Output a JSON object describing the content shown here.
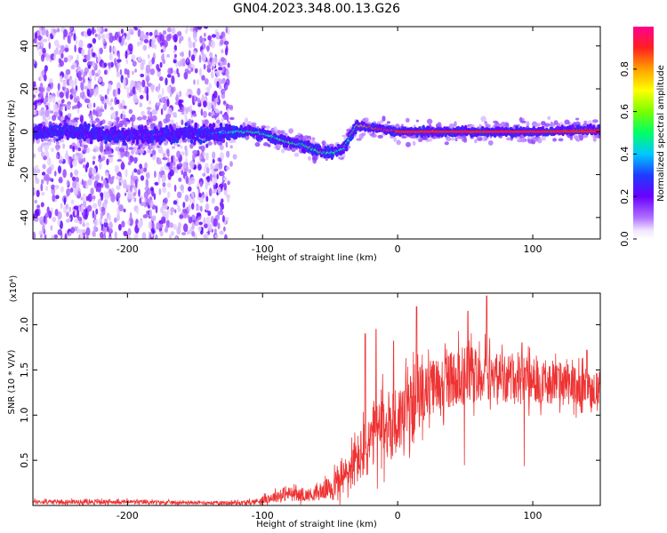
{
  "title": "GN04.2023.348.00.13.G26",
  "chart_data": [
    {
      "type": "heatmap",
      "xlabel": "Height of straight line (km)",
      "ylabel": "Frequency (Hz)",
      "xlim": [
        -270,
        150
      ],
      "ylim": [
        -50,
        49
      ],
      "xticks": [
        -200,
        -100,
        0,
        100
      ],
      "yticks": [
        -40,
        -20,
        0,
        20,
        40
      ],
      "colorbar": {
        "label": "Normalized spectral amplitude",
        "range": [
          0,
          1
        ],
        "ticks": [
          0.0,
          0.2,
          0.4,
          0.6,
          0.8
        ],
        "tick_labels": [
          "0.0",
          "0.2",
          "0.4",
          "0.6",
          "0.8"
        ],
        "colormap": "rainbow"
      },
      "ridge": {
        "x": [
          -270,
          -240,
          -200,
          -170,
          -140,
          -120,
          -110,
          -100,
          -90,
          -80,
          -70,
          -60,
          -50,
          -40,
          -35,
          -30,
          -20,
          0,
          50,
          100,
          150
        ],
        "y": [
          0,
          0,
          -2,
          -1,
          -1,
          0,
          0,
          -1,
          -3,
          -5,
          -6,
          -9,
          -10,
          -8,
          -2,
          3,
          2,
          0,
          0,
          0,
          1
        ],
        "amplitude": [
          0.25,
          0.25,
          0.22,
          0.2,
          0.28,
          0.45,
          0.48,
          0.45,
          0.48,
          0.5,
          0.5,
          0.5,
          0.48,
          0.45,
          0.5,
          0.65,
          0.85,
          0.92,
          0.92,
          0.92,
          0.9
        ]
      }
    },
    {
      "type": "line",
      "xlabel": "Height of straight line (km)",
      "ylabel": "SNR (10 * V/V)",
      "y_multiplier": "(x10⁴)",
      "xlim": [
        -270,
        150
      ],
      "ylim": [
        0,
        2.35
      ],
      "xticks": [
        -200,
        -100,
        0,
        100
      ],
      "yticks": [
        0.5,
        1.0,
        1.5,
        2.0
      ],
      "ytick_labels": [
        "0.5",
        "1.0",
        "1.5",
        "2.0"
      ],
      "color": "#ee3333",
      "envelope": {
        "x": [
          -270,
          -200,
          -150,
          -110,
          -100,
          -90,
          -80,
          -70,
          -60,
          -50,
          -40,
          -30,
          -20,
          -10,
          0,
          10,
          20,
          30,
          40,
          50,
          60,
          70,
          80,
          90,
          100,
          110,
          120,
          130,
          140,
          150
        ],
        "mean": [
          0.04,
          0.04,
          0.03,
          0.03,
          0.06,
          0.1,
          0.13,
          0.11,
          0.13,
          0.2,
          0.3,
          0.5,
          0.7,
          0.85,
          0.95,
          1.1,
          1.25,
          1.35,
          1.4,
          1.45,
          1.45,
          1.45,
          1.42,
          1.4,
          1.38,
          1.37,
          1.35,
          1.33,
          1.3,
          1.28
        ],
        "spread": [
          0.03,
          0.03,
          0.02,
          0.03,
          0.05,
          0.08,
          0.1,
          0.08,
          0.1,
          0.15,
          0.25,
          0.35,
          0.45,
          0.5,
          0.5,
          0.45,
          0.4,
          0.38,
          0.38,
          0.4,
          0.4,
          0.35,
          0.35,
          0.32,
          0.3,
          0.3,
          0.3,
          0.28,
          0.28,
          0.25
        ],
        "peaks": [
          [
            -24,
            1.9
          ],
          [
            -16,
            1.95
          ],
          [
            -3,
            1.82
          ],
          [
            14,
            2.2
          ],
          [
            52,
            2.15
          ],
          [
            66,
            2.32
          ],
          [
            92,
            1.8
          ],
          [
            140,
            1.72
          ]
        ]
      }
    }
  ]
}
